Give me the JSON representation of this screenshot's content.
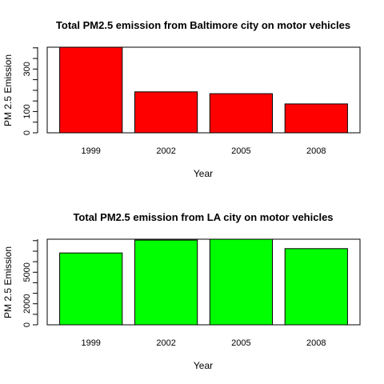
{
  "chart_data": [
    {
      "type": "bar",
      "title": "Total PM2.5 emission from Baltimore city on motor vehicles",
      "xlabel": "Year",
      "ylabel": "PM 2.5 Emission",
      "categories": [
        "1999",
        "2002",
        "2005",
        "2008"
      ],
      "values": [
        403,
        193,
        184,
        136
      ],
      "ylim": [
        0,
        403
      ],
      "yticks": [
        0,
        100,
        300
      ],
      "bar_color": "#ff0000",
      "grid": false,
      "legend": "none"
    },
    {
      "type": "bar",
      "title": "Total PM2.5 emission from LA city on motor vehicles",
      "xlabel": "Year",
      "ylabel": "PM 2.5 Emission",
      "categories": [
        "1999",
        "2002",
        "2005",
        "2008"
      ],
      "values": [
        6830,
        8060,
        8140,
        7240
      ],
      "ylim": [
        0,
        8140
      ],
      "yticks": [
        0,
        2000,
        5000
      ],
      "bar_color": "#00ff00",
      "grid": false,
      "legend": "none"
    }
  ]
}
